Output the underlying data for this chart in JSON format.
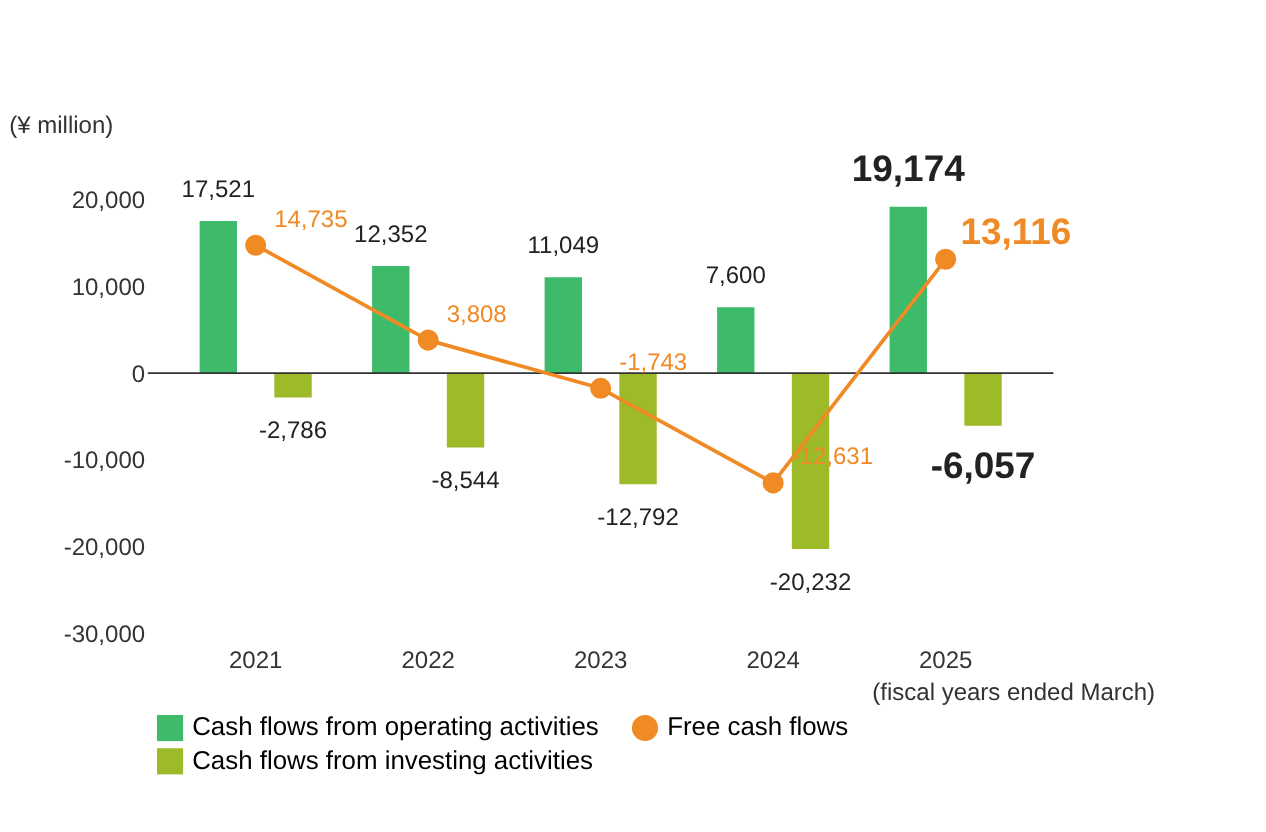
{
  "chart_data": {
    "type": "bar",
    "ylabel": "(¥ million)",
    "categories": [
      "2021",
      "2022",
      "2023",
      "2024",
      "2025"
    ],
    "series": [
      {
        "name": "Cash flows from operating activities",
        "color": "#3dba6a",
        "values": [
          17521,
          12352,
          11049,
          7600,
          19174
        ],
        "value_labels": [
          "17,521",
          "12,352",
          "11,049",
          "7,600",
          "19,174"
        ]
      },
      {
        "name": "Cash flows from investing activities",
        "color": "#9dba28",
        "values": [
          -2786,
          -8544,
          -12792,
          -20232,
          -6057
        ],
        "value_labels": [
          "-2,786",
          "-8,544",
          "-12,792",
          "-20,232",
          "-6,057"
        ]
      },
      {
        "name": "Free cash flows",
        "color": "#f08a24",
        "type": "line",
        "marker": "circle",
        "values": [
          14735,
          3808,
          -1743,
          -12631,
          13116
        ],
        "value_labels": [
          "14,735",
          "3,808",
          "-1,743",
          "-12,631",
          "13,116"
        ]
      }
    ],
    "ylim": [
      -30000,
      20000
    ],
    "yticks": [
      {
        "value": 20000,
        "label": "20,000"
      },
      {
        "value": 10000,
        "label": "10,000"
      },
      0,
      {
        "value": -10000,
        "label": "-10,000"
      },
      {
        "value": -20000,
        "label": "-20,000"
      },
      {
        "value": -30000,
        "label": "-30,000"
      }
    ],
    "ref_lines": [
      {
        "axis": "y",
        "value": 0,
        "color": "#333333"
      }
    ],
    "annotations": [
      "(fiscal years ended March)"
    ],
    "grid": false,
    "legend": "bottom"
  }
}
